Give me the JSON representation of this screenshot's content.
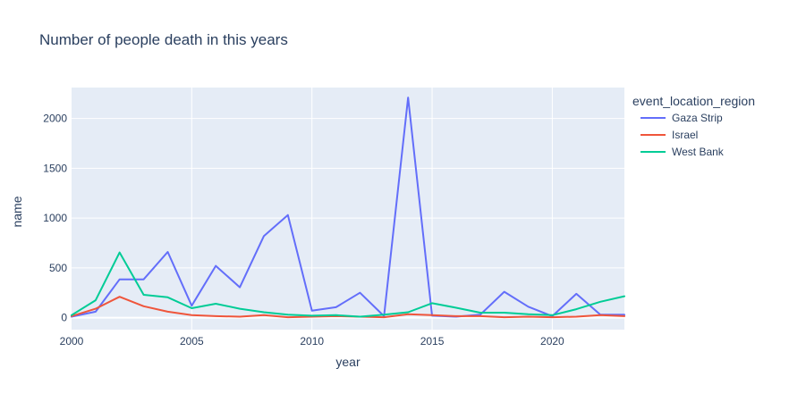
{
  "chart_data": {
    "type": "line",
    "title": "Number of people death in this years",
    "xlabel": "year",
    "ylabel": "name",
    "xlim": [
      2000,
      2023
    ],
    "ylim": [
      -120,
      2310
    ],
    "x_ticks": [
      2000,
      2005,
      2010,
      2015,
      2020
    ],
    "y_ticks": [
      0,
      500,
      1000,
      1500,
      2000
    ],
    "grid": true,
    "legend_title": "event_location_region",
    "legend_position": "right",
    "background": "#e5ecf6",
    "series": [
      {
        "name": "Gaza Strip",
        "color": "#636efa",
        "x": [
          2000,
          2001,
          2002,
          2003,
          2004,
          2005,
          2006,
          2007,
          2008,
          2009,
          2010,
          2011,
          2012,
          2013,
          2014,
          2015,
          2016,
          2017,
          2018,
          2019,
          2020,
          2021,
          2022,
          2023
        ],
        "y": [
          10,
          60,
          385,
          385,
          660,
          120,
          520,
          305,
          820,
          1030,
          70,
          105,
          250,
          15,
          2210,
          20,
          10,
          30,
          260,
          110,
          15,
          240,
          30,
          30
        ]
      },
      {
        "name": "Israel",
        "color": "#ef553b",
        "x": [
          2000,
          2001,
          2002,
          2003,
          2004,
          2005,
          2006,
          2007,
          2008,
          2009,
          2010,
          2011,
          2012,
          2013,
          2014,
          2015,
          2016,
          2017,
          2018,
          2019,
          2020,
          2021,
          2022,
          2023
        ],
        "y": [
          15,
          90,
          210,
          115,
          60,
          25,
          15,
          10,
          25,
          5,
          10,
          15,
          10,
          5,
          35,
          25,
          15,
          15,
          5,
          10,
          5,
          10,
          25,
          15
        ]
      },
      {
        "name": "West Bank",
        "color": "#00cc96",
        "x": [
          2000,
          2001,
          2002,
          2003,
          2004,
          2005,
          2006,
          2007,
          2008,
          2009,
          2010,
          2011,
          2012,
          2013,
          2014,
          2015,
          2016,
          2017,
          2018,
          2019,
          2020,
          2021,
          2022,
          2023
        ],
        "y": [
          25,
          175,
          655,
          230,
          205,
          95,
          140,
          90,
          55,
          30,
          20,
          25,
          10,
          30,
          55,
          145,
          100,
          50,
          50,
          35,
          25,
          85,
          160,
          215
        ]
      }
    ]
  }
}
